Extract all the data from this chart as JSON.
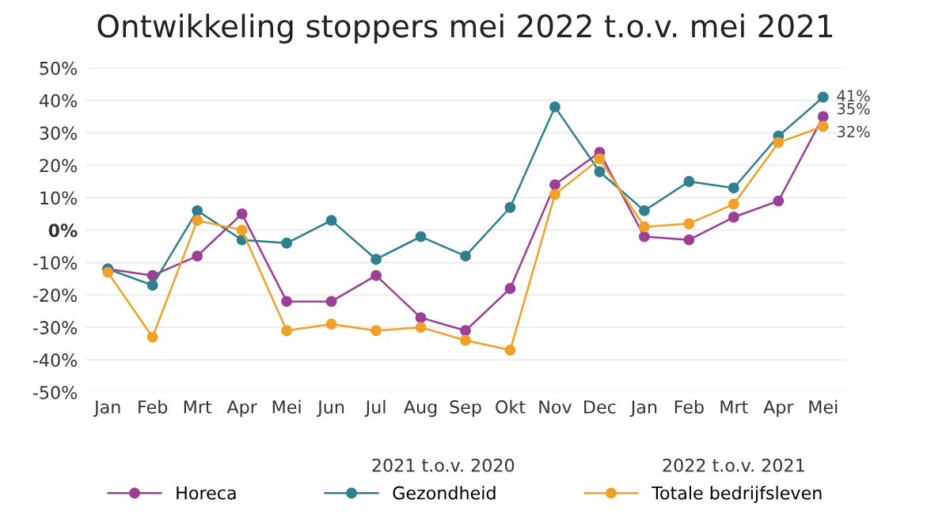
{
  "chart_data": {
    "type": "line",
    "title": "Ontwikkeling stoppers mei 2022 t.o.v. mei 2021",
    "categories": [
      "Jan",
      "Feb",
      "Mrt",
      "Apr",
      "Mei",
      "Jun",
      "Jul",
      "Aug",
      "Sep",
      "Okt",
      "Nov",
      "Dec",
      "Jan",
      "Feb",
      "Mrt",
      "Apr",
      "Mei"
    ],
    "series": [
      {
        "name": "Horeca",
        "color": "#9b3f97",
        "values": [
          -12,
          -14,
          -8,
          5,
          -22,
          -22,
          -14,
          -27,
          -31,
          -18,
          14,
          24,
          -2,
          -3,
          4,
          9,
          35
        ],
        "value_labels": [
          null,
          null,
          null,
          null,
          null,
          null,
          null,
          null,
          null,
          null,
          null,
          null,
          null,
          null,
          null,
          null,
          "35%"
        ]
      },
      {
        "name": "Gezondheid",
        "color": "#2f7f8f",
        "values": [
          -12,
          -17,
          6,
          -3,
          -4,
          3,
          -9,
          -2,
          -8,
          7,
          38,
          18,
          6,
          15,
          13,
          29,
          41
        ],
        "value_labels": [
          null,
          null,
          null,
          null,
          null,
          null,
          null,
          null,
          null,
          null,
          null,
          null,
          null,
          null,
          null,
          null,
          "41%"
        ]
      },
      {
        "name": "Totale bedrijfsleven",
        "color": "#f0a12a",
        "values": [
          -13,
          -33,
          3,
          0,
          -31,
          -29,
          -31,
          -30,
          -34,
          -37,
          11,
          22,
          1,
          2,
          8,
          27,
          32
        ],
        "value_labels": [
          null,
          null,
          null,
          null,
          null,
          null,
          null,
          null,
          null,
          null,
          null,
          null,
          null,
          null,
          null,
          null,
          "32%"
        ]
      }
    ],
    "ylim": [
      -50,
      50
    ],
    "yticks": [
      {
        "value": -50,
        "label": "-50%"
      },
      {
        "value": -40,
        "label": "-40%"
      },
      {
        "value": -30,
        "label": "-30%"
      },
      {
        "value": -20,
        "label": "-20%"
      },
      {
        "value": -10,
        "label": "-10%"
      },
      {
        "value": 0,
        "label": "0%"
      },
      {
        "value": 10,
        "label": "10%"
      },
      {
        "value": 20,
        "label": "20%"
      },
      {
        "value": 30,
        "label": "30%"
      },
      {
        "value": 40,
        "label": "40%"
      },
      {
        "value": 50,
        "label": "50%"
      }
    ],
    "annotations": [
      "2021 t.o.v. 2020",
      "2022 t.o.v. 2021"
    ],
    "grid": "y",
    "legend": "bottom",
    "marker": "circle",
    "line_style": "solid"
  }
}
